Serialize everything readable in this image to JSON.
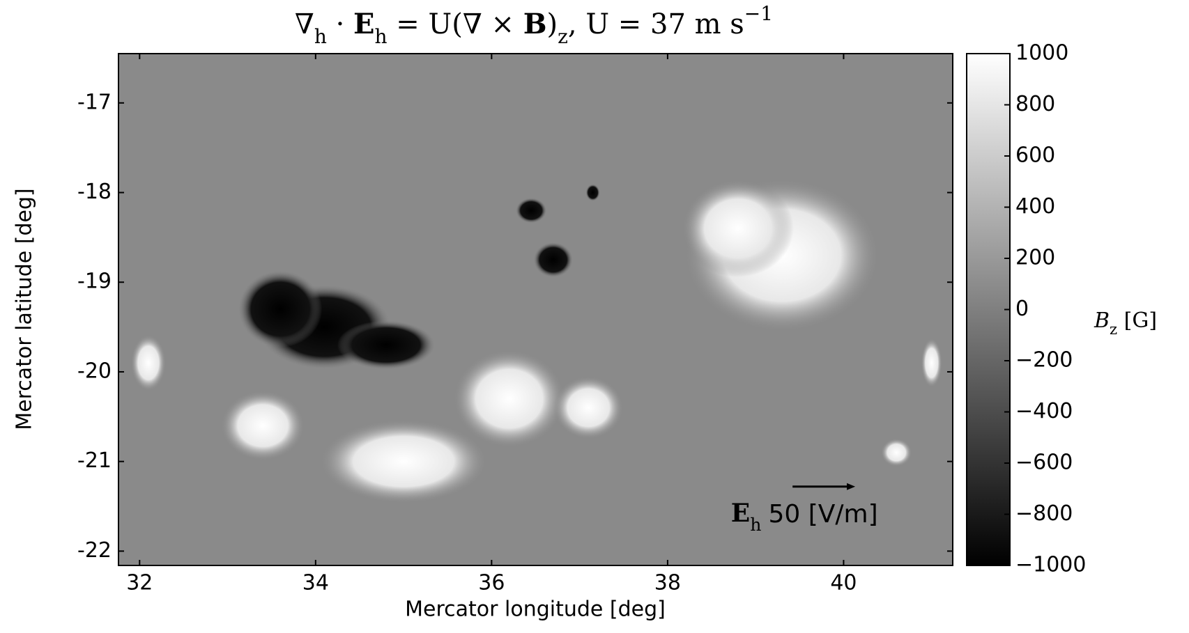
{
  "chart_data": {
    "type": "heatmap",
    "title": [
      "∇",
      "h",
      " · ",
      "E",
      "h",
      " = U(∇ × ",
      "B",
      ")",
      "z",
      ", U = 37 m s",
      "−1"
    ],
    "x_label": "Mercator longitude [deg]",
    "y_label": "Mercator latitude [deg]",
    "xlim": [
      31.76,
      41.24
    ],
    "ylim": [
      -22.16,
      -16.45
    ],
    "xticks": [
      32,
      34,
      36,
      38,
      40
    ],
    "yticks": [
      -17,
      -18,
      -19,
      -20,
      -21,
      -22
    ],
    "colormap": "gray",
    "clim": [
      -1000,
      1000
    ],
    "colorbar_ticks": [
      1000,
      800,
      600,
      400,
      200,
      0,
      {
        "value": -200,
        "label": "−200"
      },
      {
        "value": -400,
        "label": "−400"
      },
      {
        "value": -600,
        "label": "−600"
      },
      {
        "value": -800,
        "label": "−800"
      },
      {
        "value": -1000,
        "label": "−1000"
      }
    ],
    "colorbar_label": [
      "B",
      "z",
      " [G]"
    ],
    "quiver_key": {
      "symbol": [
        "E",
        "h"
      ],
      "value": 50,
      "label": "50 [V/m]",
      "color": "#000000"
    },
    "arrow_colors": [
      "#ff0000",
      "#0000ff"
    ]
  }
}
